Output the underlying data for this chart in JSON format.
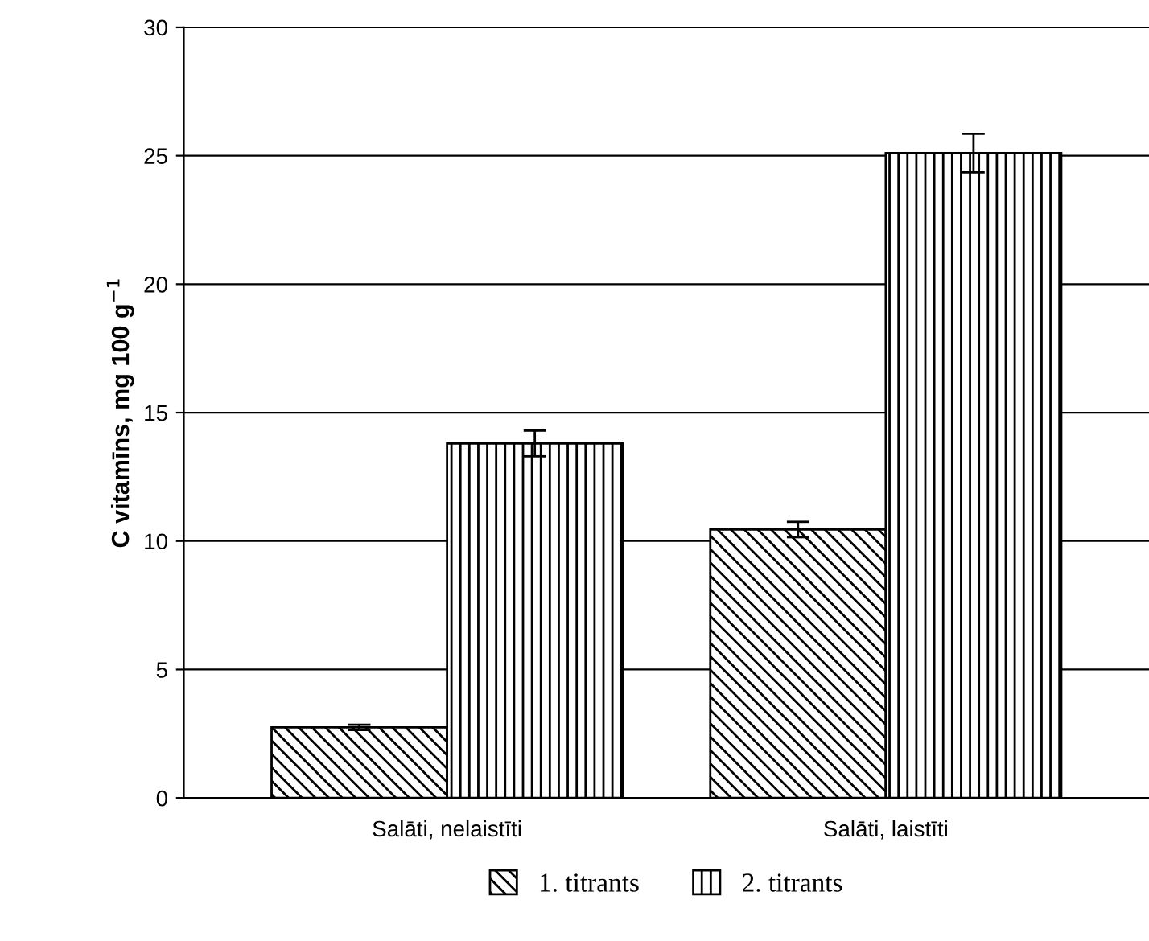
{
  "chart_data": {
    "type": "bar",
    "ylabel": "C vitamīns, mg 100 g$^{−1}$",
    "categories": [
      "Salāti, nelaistīti",
      "Salāti, laistīti"
    ],
    "series": [
      {
        "name": "1. titrants",
        "color": "#000000",
        "values": [
          2.75,
          10.45
        ],
        "errors": [
          0.1,
          0.3
        ]
      },
      {
        "name": "2. titrants",
        "color": "#000000",
        "values": [
          13.8,
          25.1
        ],
        "errors": [
          0.5,
          0.75
        ]
      }
    ],
    "ylim": [
      0,
      30
    ],
    "yticks": [
      0,
      5,
      10,
      15,
      20,
      25,
      30
    ],
    "grid": "y",
    "legend": "bottom"
  }
}
